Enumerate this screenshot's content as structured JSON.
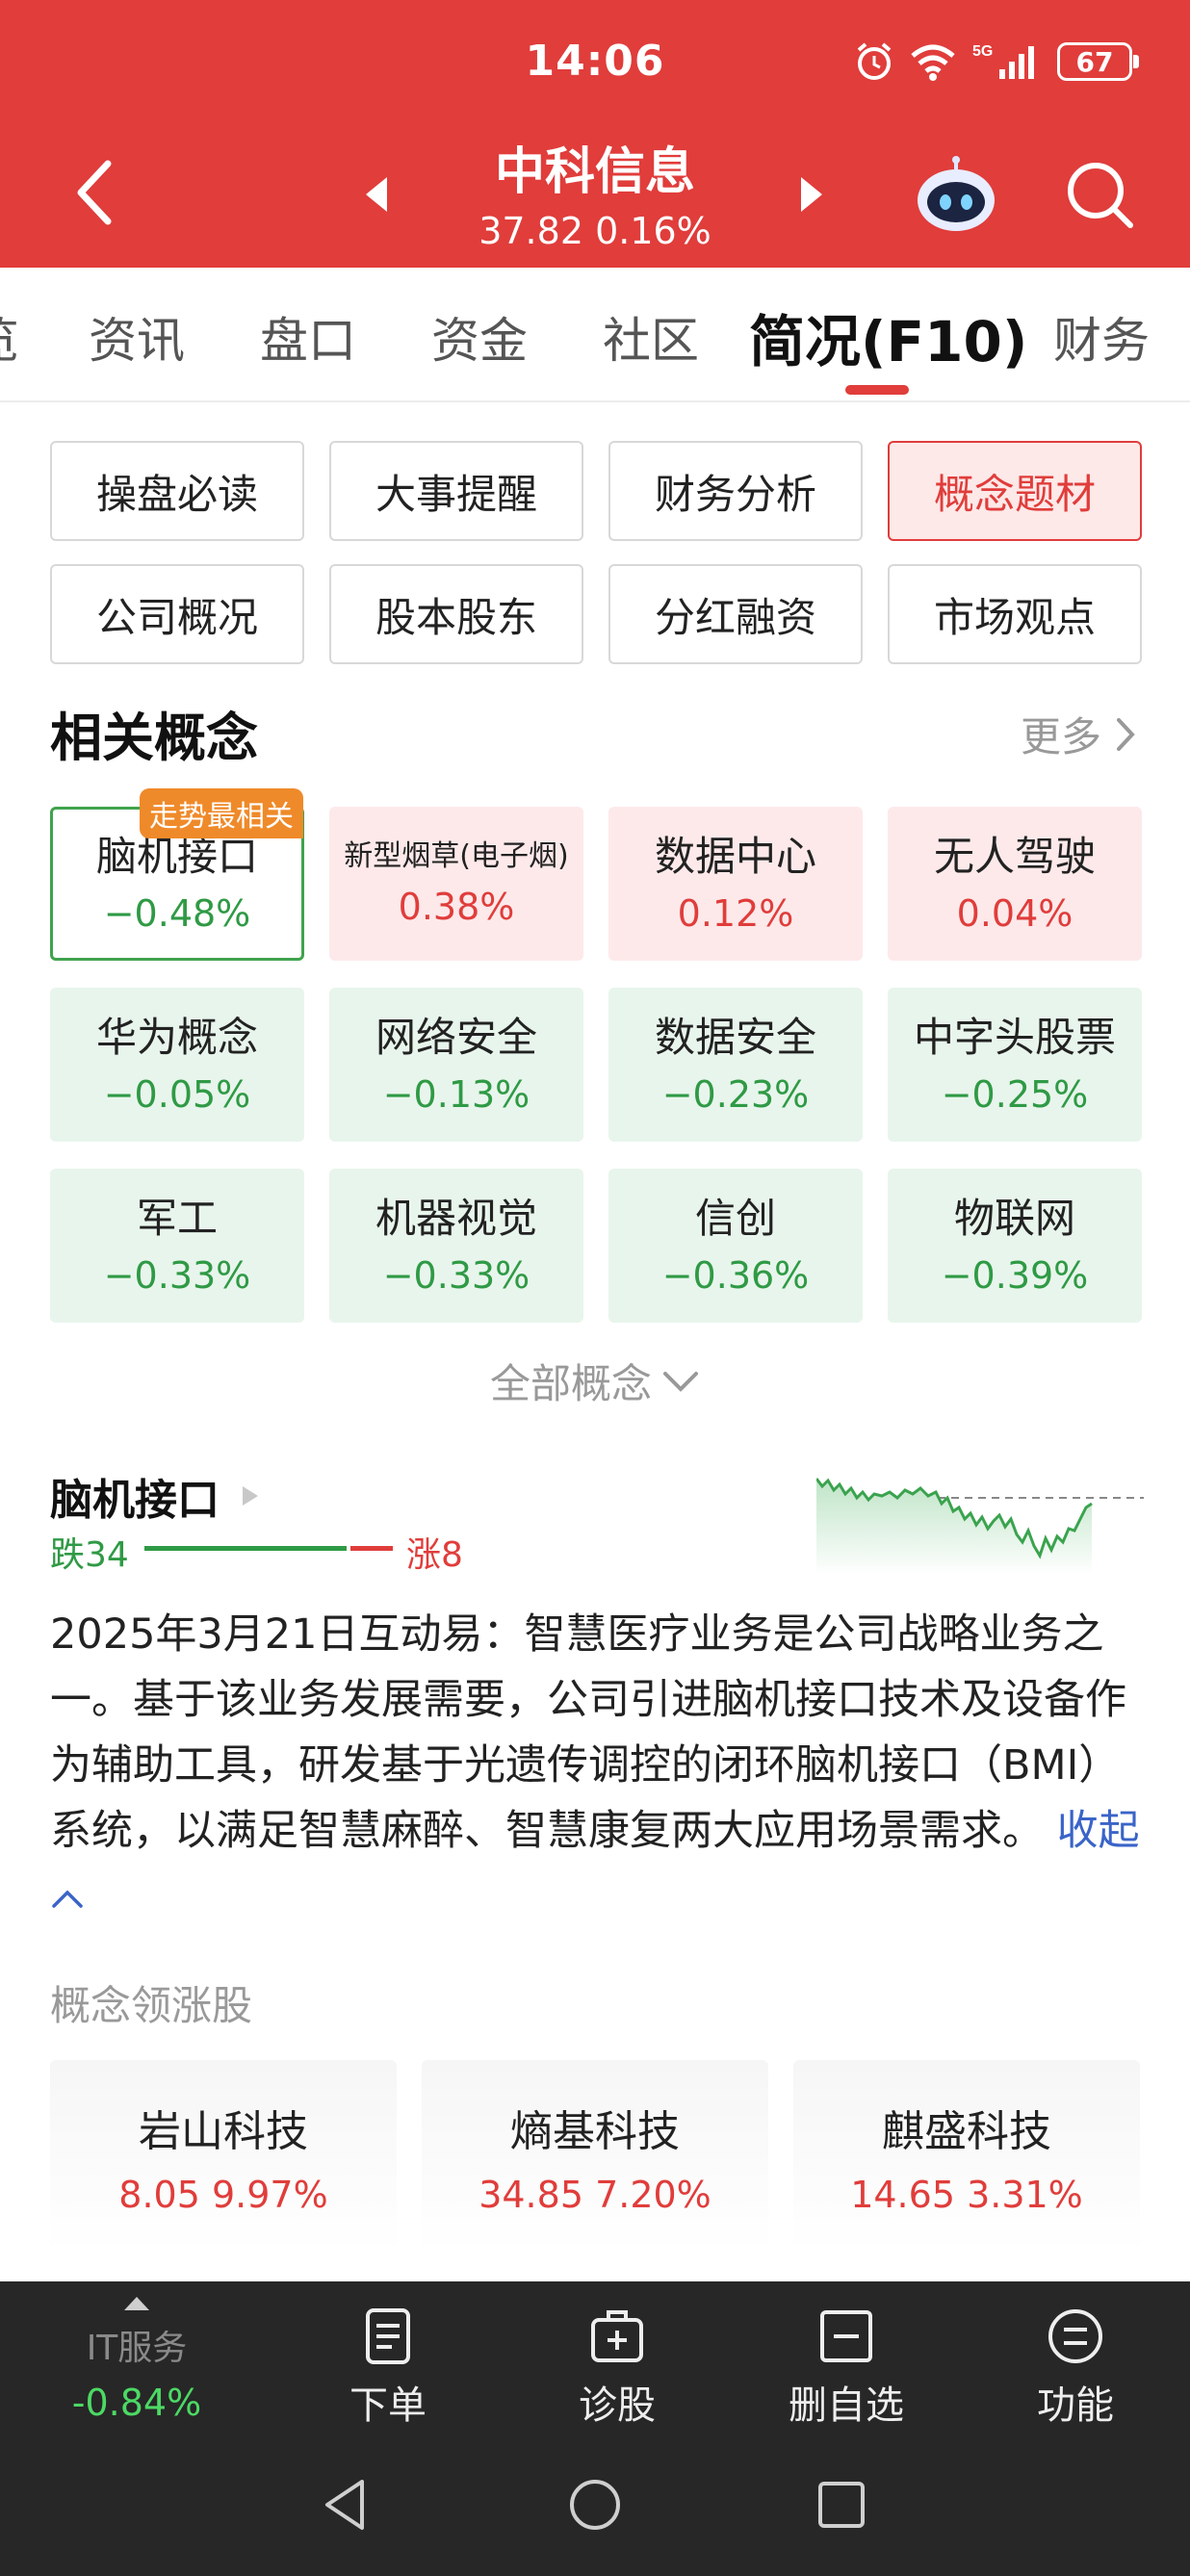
{
  "status_bar": {
    "time": "14:06",
    "battery": "67",
    "network": "5G"
  },
  "header": {
    "stock_name": "中科信息",
    "quote": "37.82 0.16%"
  },
  "tabs": [
    {
      "label": "览"
    },
    {
      "label": "资讯"
    },
    {
      "label": "盘口"
    },
    {
      "label": "资金"
    },
    {
      "label": "社区"
    },
    {
      "label": "简况(F10)"
    },
    {
      "label": "财务"
    }
  ],
  "sections": [
    {
      "label": "操盘必读"
    },
    {
      "label": "大事提醒"
    },
    {
      "label": "财务分析"
    },
    {
      "label": "概念题材"
    },
    {
      "label": "公司概况"
    },
    {
      "label": "股本股东"
    },
    {
      "label": "分红融资"
    },
    {
      "label": "市场观点"
    }
  ],
  "related": {
    "title": "相关概念",
    "more": "更多",
    "badge": "走势最相关",
    "all": "全部概念",
    "concepts": [
      {
        "name": "脑机接口",
        "value": "−0.48%"
      },
      {
        "name": "新型烟草(电子烟)",
        "value": "0.38%"
      },
      {
        "name": "数据中心",
        "value": "0.12%"
      },
      {
        "name": "无人驾驶",
        "value": "0.04%"
      },
      {
        "name": "华为概念",
        "value": "−0.05%"
      },
      {
        "name": "网络安全",
        "value": "−0.13%"
      },
      {
        "name": "数据安全",
        "value": "−0.23%"
      },
      {
        "name": "中字头股票",
        "value": "−0.25%"
      },
      {
        "name": "军工",
        "value": "−0.33%"
      },
      {
        "name": "机器视觉",
        "value": "−0.33%"
      },
      {
        "name": "信创",
        "value": "−0.36%"
      },
      {
        "name": "物联网",
        "value": "−0.39%"
      }
    ]
  },
  "detail": {
    "name": "脑机接口",
    "fall": "跌34",
    "rise": "涨8",
    "rise_ratio": 0.19,
    "description": "2025年3月21日互动易：智慧医疗业务是公司战略业务之一。基于该业务发展需要，公司引进脑机接口技术及设备作为辅助工具，研发基于光遗传调控的闭环脑机接口（BMI）系统，以满足智慧麻醉、智慧康复两大应用场景需求。",
    "collapse": "收起"
  },
  "leaders": {
    "title": "概念领涨股",
    "items": [
      {
        "name": "岩山科技",
        "quote": "8.05 9.97%"
      },
      {
        "name": "熵基科技",
        "quote": "34.85 7.20%"
      },
      {
        "name": "麒盛科技",
        "quote": "14.65 3.31%"
      }
    ]
  },
  "bottom_bar": {
    "sector": {
      "name": "IT服务",
      "value": "-0.84%"
    },
    "items": [
      {
        "label": "下单",
        "icon": "order-icon"
      },
      {
        "label": "诊股",
        "icon": "diagnose-icon"
      },
      {
        "label": "删自选",
        "icon": "remove-watchlist-icon"
      },
      {
        "label": "功能",
        "icon": "menu-icon"
      }
    ]
  },
  "colors": {
    "brand_red": "#e03d3b",
    "up_red": "#e03d3b",
    "down_green": "#2f9a45"
  }
}
